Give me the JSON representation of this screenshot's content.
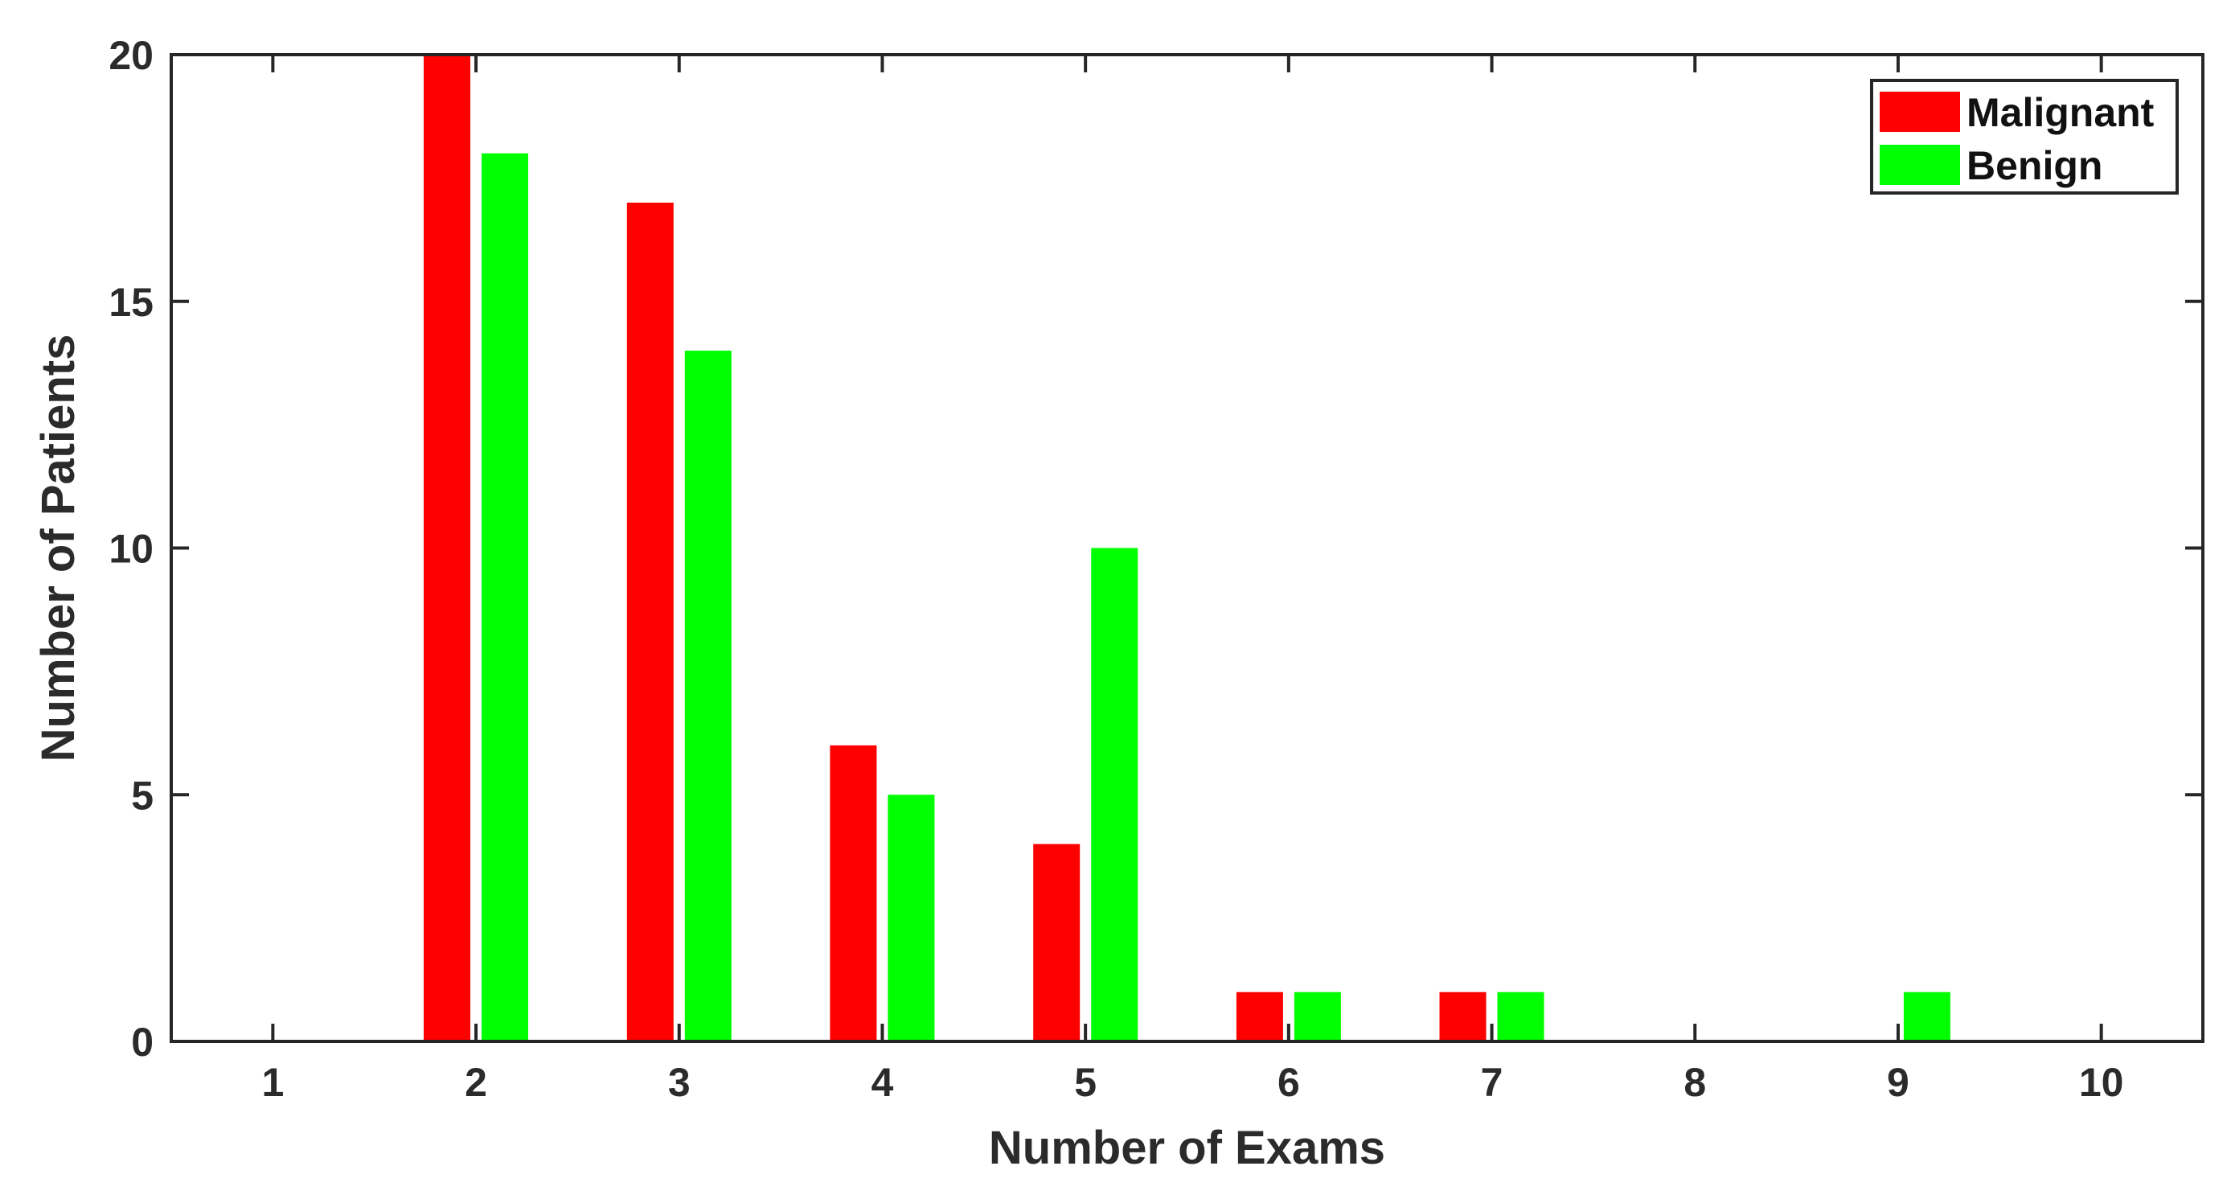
{
  "chart_data": {
    "type": "bar",
    "x": [
      1,
      2,
      3,
      4,
      5,
      6,
      7,
      8,
      9,
      10
    ],
    "series": [
      {
        "name": "Malignant",
        "color": "#ff0000",
        "values": [
          0,
          20,
          17,
          6,
          4,
          1,
          1,
          0,
          0,
          0
        ]
      },
      {
        "name": "Benign",
        "color": "#00ff00",
        "values": [
          0,
          18,
          14,
          5,
          10,
          1,
          1,
          0,
          1,
          0
        ]
      }
    ],
    "xlabel": "Number of Exams",
    "ylabel": "Number of Patients",
    "xlim": [
      0.5,
      10.5
    ],
    "ylim": [
      0,
      20
    ],
    "yticks": [
      0,
      5,
      10,
      15,
      20
    ],
    "grid": false,
    "legend_position": "top-right"
  }
}
